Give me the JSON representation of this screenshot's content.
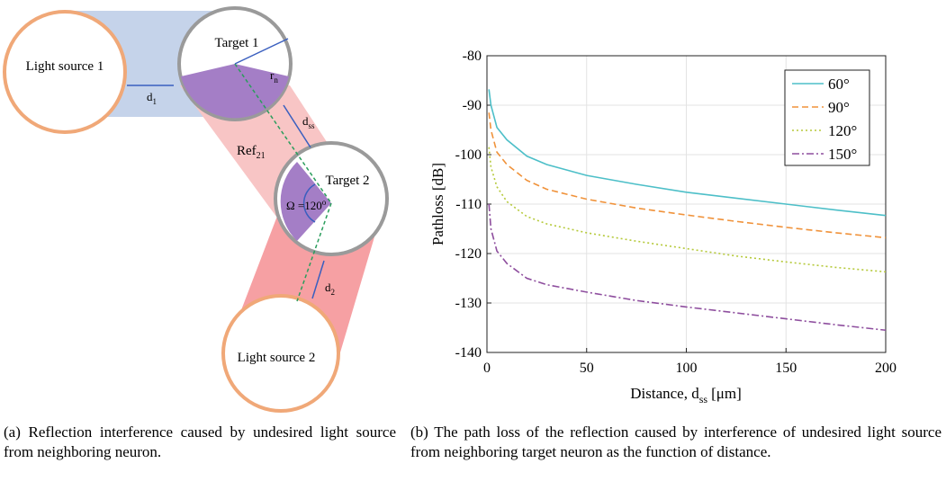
{
  "diagram": {
    "light_source_1": "Light source 1",
    "d1": {
      "base": "d",
      "sub": "1"
    },
    "target_1": "Target 1",
    "rn": {
      "base": "r",
      "sub": "n"
    },
    "dss": {
      "base": "d",
      "sub": "ss"
    },
    "ref21": {
      "base": "Ref",
      "sub": "21"
    },
    "target_2": "Target 2",
    "omega": {
      "text": "Ω =120",
      "sup": "o"
    },
    "d2": {
      "base": "d",
      "sub": "2"
    },
    "light_source_2": "Light source 2"
  },
  "chart_data": {
    "type": "line",
    "ylabel": "Pathloss [dB]",
    "xlabel": {
      "text": "Distance, d",
      "sub": "ss",
      "unit": "[μm]"
    },
    "x": [
      1,
      2,
      5,
      10,
      20,
      30,
      50,
      75,
      100,
      125,
      150,
      175,
      200
    ],
    "series": [
      {
        "name": "60°",
        "color": "#4dbfc8",
        "linestyle": "solid",
        "values": [
          -86.8,
          -90,
          -94.5,
          -97,
          -100.3,
          -102,
          -104.2,
          -106,
          -107.6,
          -108.8,
          -110,
          -111.2,
          -112.3
        ]
      },
      {
        "name": "90°",
        "color": "#f0923a",
        "linestyle": "dashed",
        "values": [
          -91.5,
          -95,
          -99.5,
          -102,
          -105.2,
          -107,
          -109,
          -110.8,
          -112.2,
          -113.5,
          -114.7,
          -115.8,
          -116.8
        ]
      },
      {
        "name": "120°",
        "color": "#b5c93a",
        "linestyle": "dotted",
        "values": [
          -98.5,
          -102.5,
          -106.5,
          -109.5,
          -112.5,
          -114,
          -115.8,
          -117.5,
          -119,
          -120.5,
          -121.7,
          -122.8,
          -123.7
        ]
      },
      {
        "name": "150°",
        "color": "#8e4e9e",
        "linestyle": "dashdot",
        "values": [
          -110,
          -115,
          -119.5,
          -122,
          -125,
          -126.3,
          -127.8,
          -129.5,
          -130.8,
          -132,
          -133.2,
          -134.4,
          -135.5
        ]
      }
    ],
    "xlim": [
      0,
      200
    ],
    "xticks": [
      0,
      50,
      100,
      150,
      200
    ],
    "ylim": [
      -140,
      -80
    ],
    "yticks": [
      -140,
      -130,
      -120,
      -110,
      -100,
      -90,
      -80
    ],
    "grid": true,
    "legend": "upper right"
  },
  "captions": {
    "a": "(a) Reflection interference caused by undesired light source from neighboring neuron.",
    "b": "(b) The path loss of the reflection caused by interference of undesired light source from neighboring target neuron as the function of distance."
  }
}
